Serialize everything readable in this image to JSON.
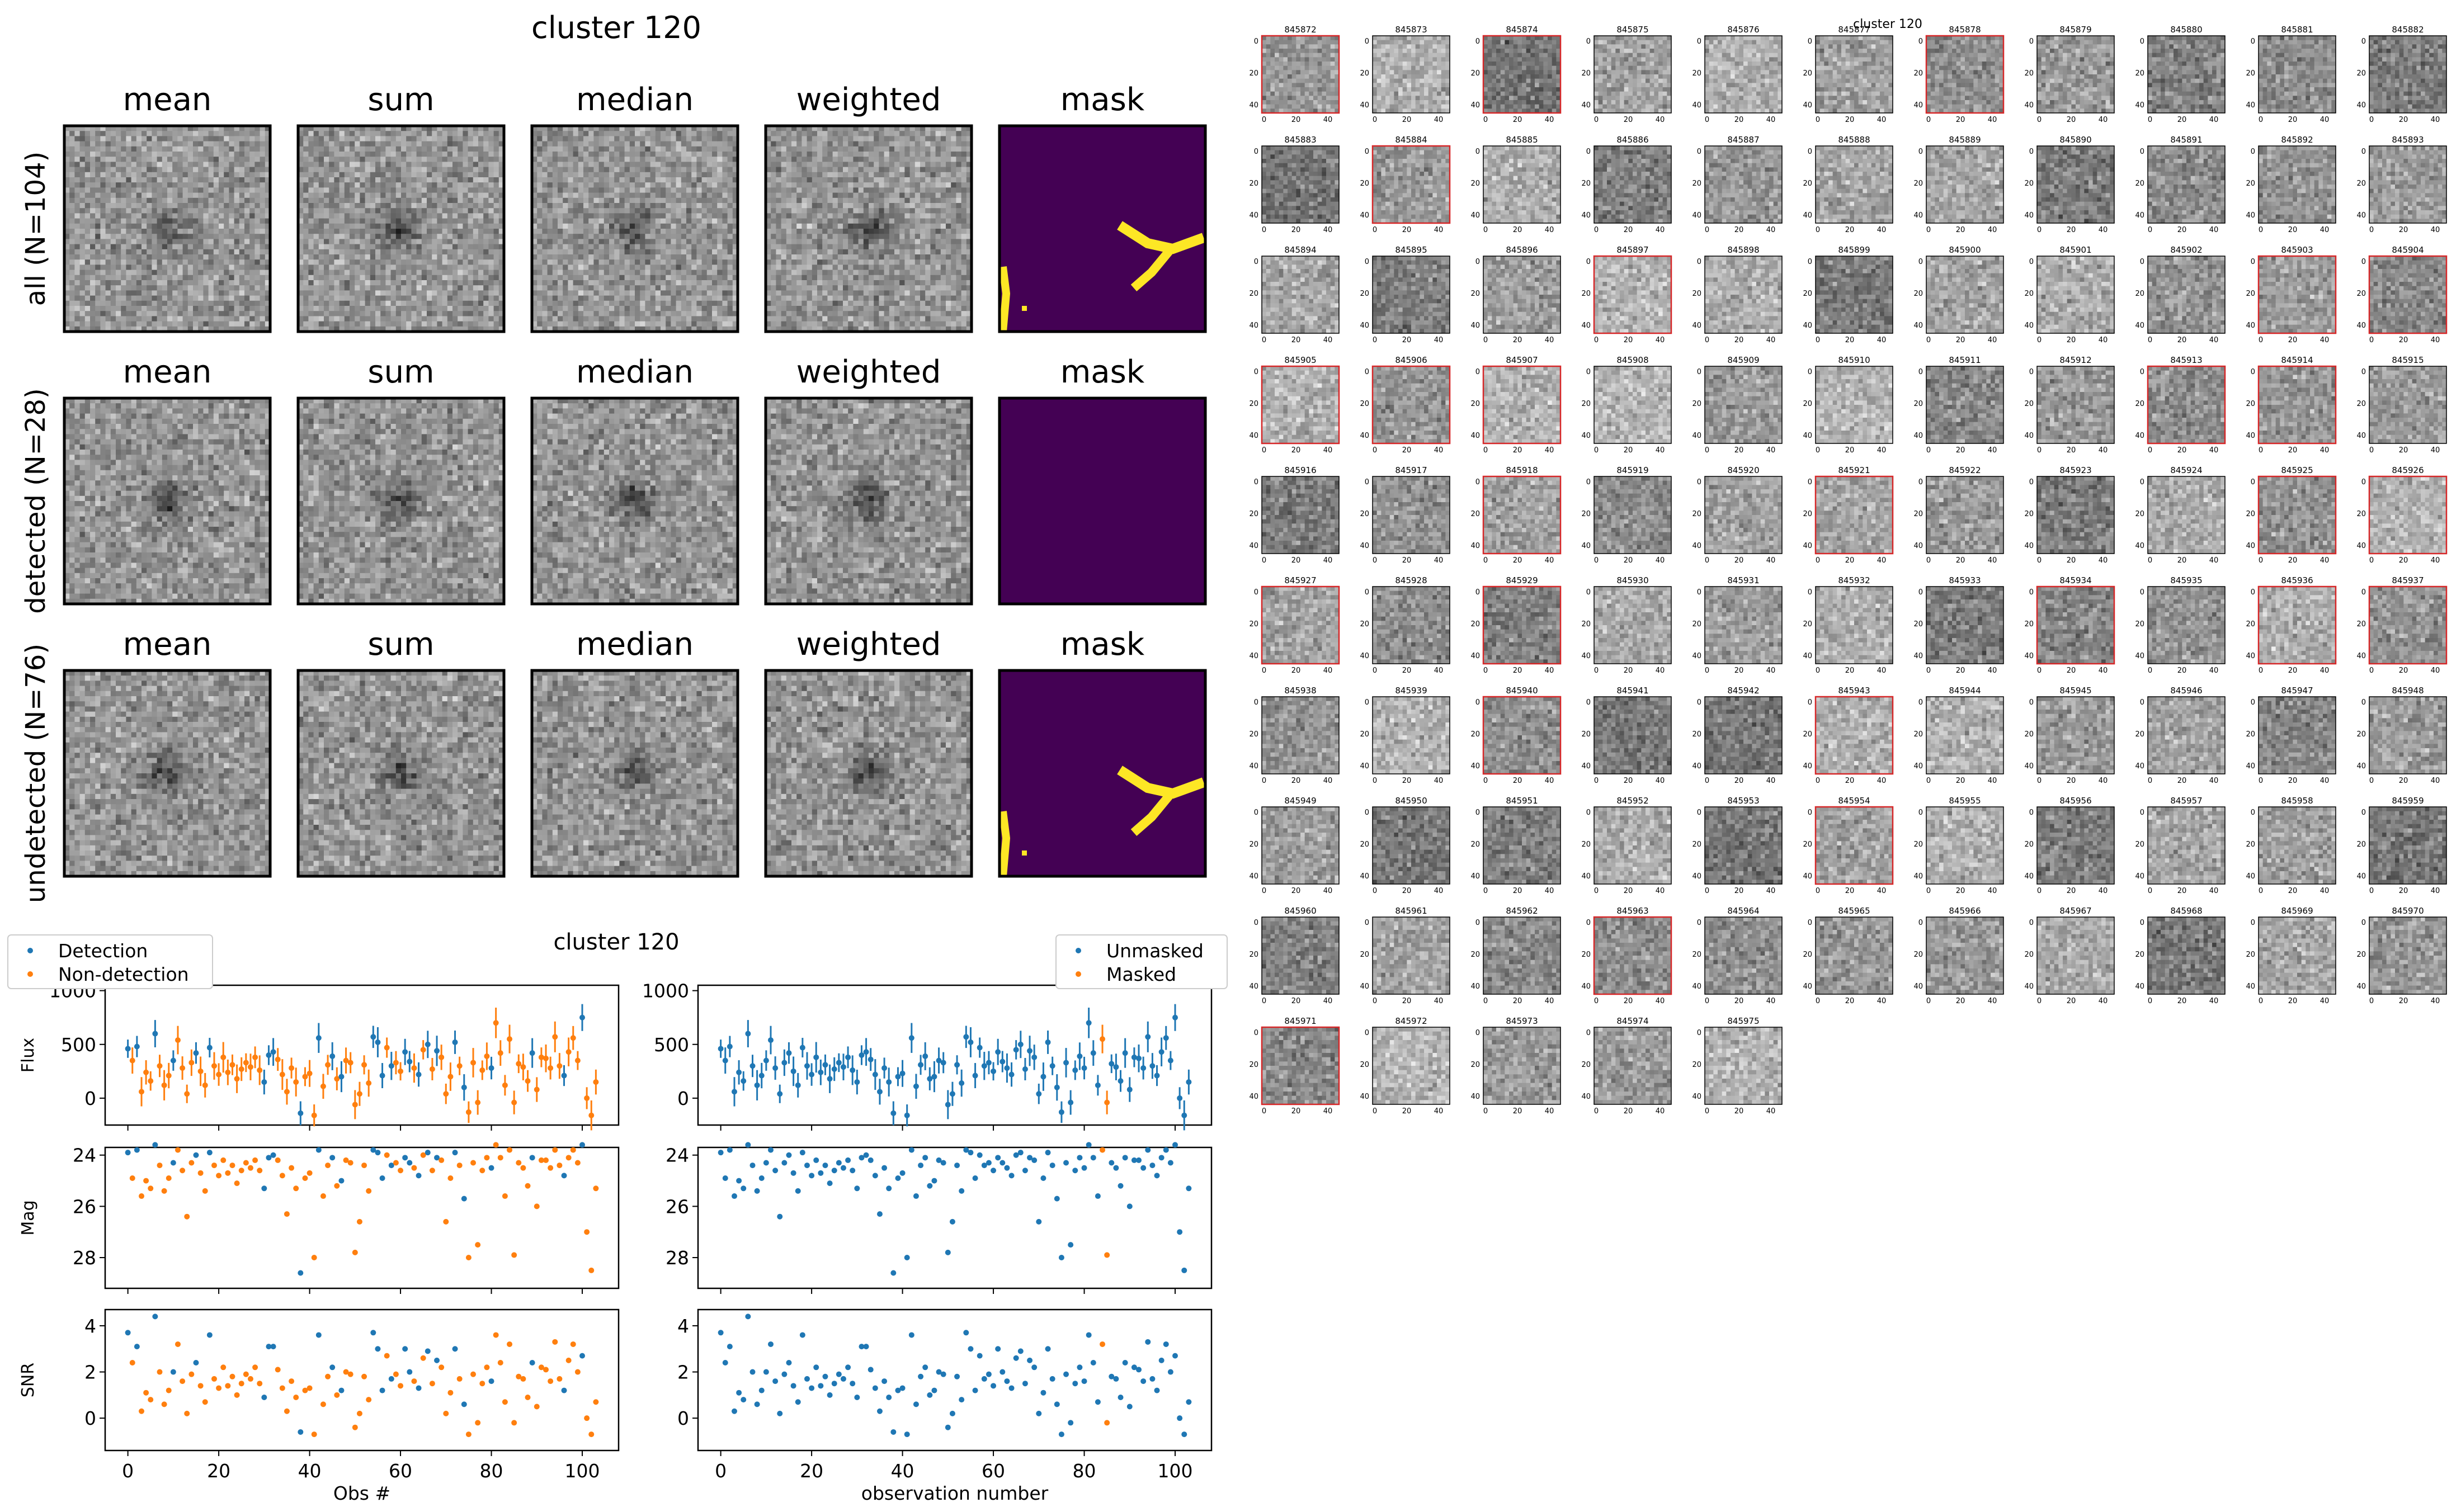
{
  "colors": {
    "detection": "#1f77b4",
    "non_detection": "#ff7f0e",
    "mask_background": "#440154",
    "mask_foreground": "#fde725",
    "thumb_flagged_border": "#d62728"
  },
  "stack_figure": {
    "title": "cluster 120",
    "columns": [
      "mean",
      "sum",
      "median",
      "weighted",
      "mask"
    ],
    "rows": [
      {
        "label": "all (N=104)",
        "mask_has_streak": true
      },
      {
        "label": "detected (N=28)",
        "mask_has_streak": false
      },
      {
        "label": "undetected (N=76)",
        "mask_has_streak": true
      }
    ]
  },
  "lightcurve_figure": {
    "title": "cluster 120",
    "legend_left": [
      "Detection",
      "Non-detection"
    ],
    "legend_right": [
      "Unmasked",
      "Masked"
    ],
    "xlabel_left": "Obs #",
    "xlabel_right": "observation number",
    "x_ticks": [
      "0",
      "20",
      "40",
      "60",
      "80",
      "100"
    ],
    "panels": [
      {
        "ylabel": "Flux",
        "ticks": [
          "0",
          "500",
          "1000"
        ],
        "ylim": [
          -250,
          1050
        ]
      },
      {
        "ylabel": "Mag",
        "ticks": [
          "24",
          "26",
          "28"
        ],
        "ylim": [
          23.7,
          29.2
        ]
      },
      {
        "ylabel": "SNR",
        "ticks": [
          "0",
          "2",
          "4"
        ],
        "ylim": [
          -1.4,
          4.7
        ]
      }
    ]
  },
  "chart_data": {
    "type": "scatter",
    "x": [
      0,
      1,
      2,
      3,
      4,
      5,
      6,
      7,
      8,
      9,
      10,
      11,
      12,
      13,
      14,
      15,
      16,
      17,
      18,
      19,
      20,
      21,
      22,
      23,
      24,
      25,
      26,
      27,
      28,
      29,
      30,
      31,
      32,
      33,
      34,
      35,
      36,
      37,
      38,
      39,
      40,
      41,
      42,
      43,
      44,
      45,
      46,
      47,
      48,
      49,
      50,
      51,
      52,
      53,
      54,
      55,
      56,
      57,
      58,
      59,
      60,
      61,
      62,
      63,
      64,
      65,
      66,
      67,
      68,
      69,
      70,
      71,
      72,
      73,
      74,
      75,
      76,
      77,
      78,
      79,
      80,
      81,
      82,
      83,
      84,
      85,
      86,
      87,
      88,
      89,
      90,
      91,
      92,
      93,
      94,
      95,
      96,
      97,
      98,
      99,
      100,
      101,
      102,
      103
    ],
    "series": [
      {
        "name": "Detection",
        "indices": [
          0,
          2,
          6,
          10,
          15,
          18,
          30,
          31,
          32,
          38,
          42,
          45,
          47,
          54,
          55,
          56,
          58,
          61,
          62,
          64,
          66,
          68,
          72,
          74,
          80,
          89,
          96,
          100
        ]
      },
      {
        "name": "Non-detection",
        "indices": "all other observations"
      },
      {
        "name": "Unmasked",
        "indices": "all other observations"
      },
      {
        "name": "Masked",
        "indices": [
          84,
          85
        ]
      }
    ],
    "flux": [
      460,
      350,
      480,
      60,
      240,
      160,
      600,
      300,
      120,
      210,
      350,
      540,
      280,
      40,
      330,
      420,
      250,
      120,
      470,
      300,
      220,
      380,
      240,
      310,
      180,
      270,
      330,
      290,
      380,
      260,
      150,
      400,
      430,
      360,
      220,
      60,
      280,
      150,
      -140,
      200,
      230,
      -160,
      560,
      110,
      310,
      390,
      180,
      200,
      350,
      330,
      -60,
      40,
      310,
      140,
      570,
      520,
      210,
      470,
      300,
      330,
      250,
      430,
      340,
      280,
      220,
      450,
      500,
      270,
      440,
      380,
      40,
      200,
      520,
      300,
      100,
      -130,
      330,
      -40,
      260,
      390,
      280,
      700,
      420,
      120,
      550,
      -40,
      320,
      290,
      160,
      420,
      80,
      380,
      370,
      280,
      570,
      300,
      210,
      430,
      560,
      350,
      750,
      0,
      -160,
      150
    ],
    "mag": [
      23.9,
      24.9,
      23.8,
      25.6,
      25.0,
      25.3,
      23.6,
      24.4,
      25.4,
      24.9,
      24.3,
      23.8,
      24.6,
      26.4,
      24.3,
      24.0,
      24.7,
      25.4,
      23.9,
      24.4,
      24.8,
      24.2,
      24.7,
      24.4,
      25.1,
      24.6,
      24.3,
      24.5,
      24.2,
      24.6,
      25.3,
      24.1,
      24.0,
      24.2,
      24.8,
      26.3,
      24.5,
      25.3,
      28.6,
      24.9,
      24.7,
      28.0,
      23.8,
      25.6,
      24.4,
      24.1,
      25.2,
      25.0,
      24.2,
      24.3,
      27.8,
      26.6,
      24.4,
      25.4,
      23.8,
      23.9,
      24.9,
      24.0,
      24.4,
      24.3,
      24.6,
      24.1,
      24.3,
      24.5,
      24.8,
      24.0,
      23.9,
      24.6,
      24.1,
      24.2,
      26.6,
      24.9,
      23.9,
      24.4,
      25.7,
      28.0,
      24.3,
      27.5,
      24.6,
      24.1,
      24.5,
      23.6,
      24.1,
      25.6,
      23.8,
      27.9,
      24.3,
      24.5,
      25.2,
      24.1,
      26.0,
      24.2,
      24.2,
      24.5,
      23.8,
      24.4,
      24.8,
      24.1,
      23.8,
      24.3,
      23.6,
      27.0,
      28.5,
      25.3
    ],
    "snr": [
      3.7,
      2.4,
      3.1,
      0.3,
      1.1,
      0.8,
      4.4,
      2.0,
      0.6,
      1.2,
      2.0,
      3.2,
      1.6,
      0.2,
      1.9,
      2.4,
      1.4,
      0.7,
      3.6,
      1.7,
      1.3,
      2.2,
      1.4,
      1.8,
      1.0,
      1.5,
      1.9,
      1.7,
      2.2,
      1.5,
      0.9,
      3.1,
      3.1,
      2.1,
      1.3,
      0.3,
      1.6,
      0.9,
      -0.6,
      1.2,
      1.3,
      -0.7,
      3.6,
      0.6,
      1.8,
      2.2,
      1.0,
      1.2,
      2.0,
      1.9,
      -0.4,
      0.2,
      1.8,
      0.8,
      3.7,
      3.0,
      1.2,
      2.7,
      1.7,
      1.9,
      1.4,
      3.0,
      2.0,
      1.6,
      1.3,
      2.6,
      2.9,
      1.5,
      2.5,
      2.2,
      0.2,
      1.1,
      3.0,
      1.7,
      0.6,
      -0.7,
      1.9,
      -0.2,
      1.5,
      2.2,
      1.6,
      3.6,
      2.4,
      0.7,
      3.2,
      -0.2,
      1.8,
      1.7,
      0.9,
      2.4,
      0.5,
      2.2,
      2.1,
      1.6,
      3.3,
      1.7,
      1.2,
      2.5,
      3.2,
      2.0,
      2.7,
      0.0,
      -0.7,
      0.7
    ]
  },
  "thumb_grid": {
    "title": "cluster 120",
    "ids": [
      "845872",
      "845873",
      "845874",
      "845875",
      "845876",
      "845877",
      "845878",
      "845879",
      "845880",
      "845881",
      "845882",
      "845883",
      "845884",
      "845885",
      "845886",
      "845887",
      "845888",
      "845889",
      "845890",
      "845891",
      "845892",
      "845893",
      "845894",
      "845895",
      "845896",
      "845897",
      "845898",
      "845899",
      "845900",
      "845901",
      "845902",
      "845903",
      "845904",
      "845905",
      "845906",
      "845907",
      "845908",
      "845909",
      "845910",
      "845911",
      "845912",
      "845913",
      "845914",
      "845915",
      "845916",
      "845917",
      "845918",
      "845919",
      "845920",
      "845921",
      "845922",
      "845923",
      "845924",
      "845925",
      "845926",
      "845927",
      "845928",
      "845929",
      "845930",
      "845931",
      "845932",
      "845933",
      "845934",
      "845935",
      "845936",
      "845937",
      "845938",
      "845939",
      "845940",
      "845941",
      "845942",
      "845943",
      "845944",
      "845945",
      "845946",
      "845947",
      "845948",
      "845949",
      "845950",
      "845951",
      "845952",
      "845953",
      "845954",
      "845955",
      "845956",
      "845957",
      "845958",
      "845959",
      "845960",
      "845961",
      "845962",
      "845963",
      "845964",
      "845965",
      "845966",
      "845967",
      "845968",
      "845969",
      "845970",
      "845971",
      "845972",
      "845973",
      "845974",
      "845975"
    ],
    "flagged": [
      "845872",
      "845874",
      "845878",
      "845884",
      "845897",
      "845903",
      "845904",
      "845905",
      "845906",
      "845907",
      "845913",
      "845914",
      "845918",
      "845921",
      "845925",
      "845926",
      "845927",
      "845929",
      "845934",
      "845936",
      "845937",
      "845940",
      "845943",
      "845954",
      "845963",
      "845971"
    ],
    "y_ticks": [
      "0",
      "20",
      "40"
    ],
    "x_ticks": [
      "0",
      "20",
      "40"
    ],
    "columns": 11
  }
}
